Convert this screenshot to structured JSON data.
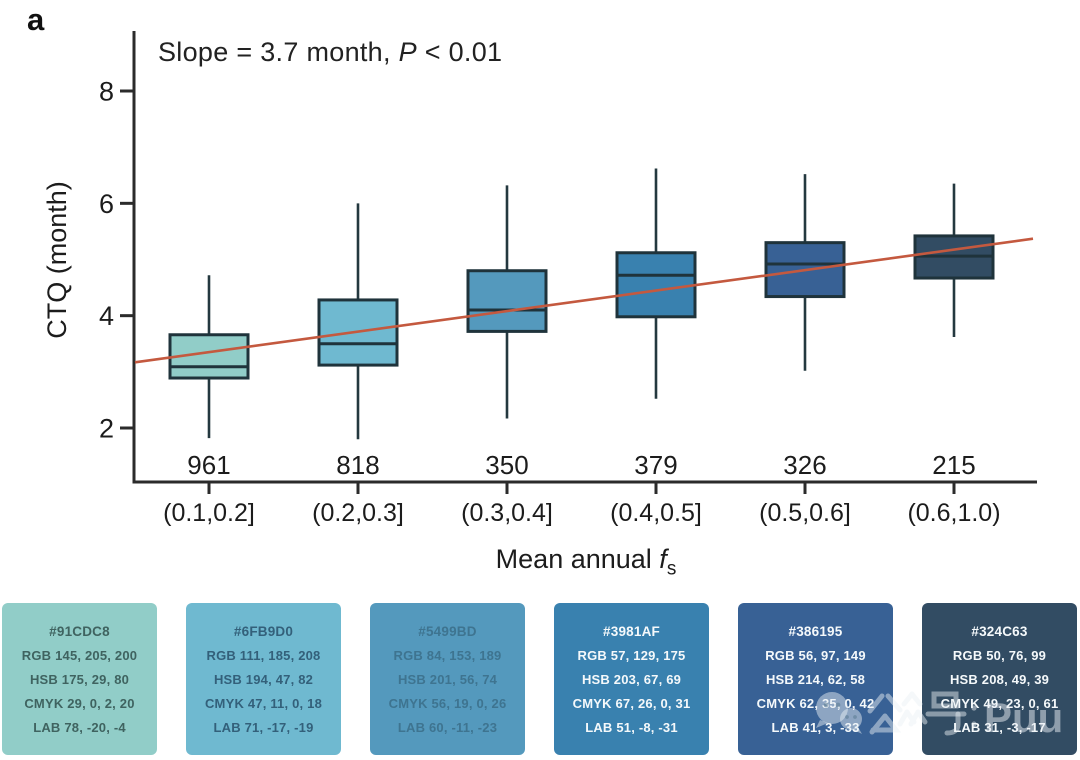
{
  "panel_label": "a",
  "annotation": {
    "prefix": "Slope = 3.7 month, ",
    "p_symbol": "P",
    "suffix": " < 0.01"
  },
  "axes": {
    "ylabel": "CTQ (month)",
    "xlabel_prefix": "Mean annual ",
    "xlabel_var": "f",
    "xlabel_sub": "s"
  },
  "watermark": {
    "text": "公众号：Puul",
    "brand": "Puul"
  },
  "chart_data": {
    "type": "box",
    "title": "Slope = 3.7 month, P < 0.01",
    "xlabel": "Mean annual f_s",
    "ylabel": "CTQ (month)",
    "ylim": [
      1.5,
      8.8
    ],
    "yticks": [
      8,
      6,
      4,
      2
    ],
    "grid": false,
    "legend": "none",
    "categories": [
      "(0.1,0.2]",
      "(0.2,0.3]",
      "(0.3,0.4]",
      "(0.4,0.5]",
      "(0.5,0.6]",
      "(0.6,1.0)"
    ],
    "counts": [
      961,
      818,
      350,
      379,
      326,
      215
    ],
    "series": [
      {
        "category": "(0.1,0.2]",
        "n": "961",
        "whisker_low": 1.82,
        "q1": 2.89,
        "median": 3.09,
        "q3": 3.66,
        "whisker_high": 4.72,
        "color": "#91CDC8"
      },
      {
        "category": "(0.2,0.3]",
        "n": "818",
        "whisker_low": 1.8,
        "q1": 3.12,
        "median": 3.5,
        "q3": 4.28,
        "whisker_high": 6.0,
        "color": "#6FB9D0"
      },
      {
        "category": "(0.3,0.4]",
        "n": "350",
        "whisker_low": 2.17,
        "q1": 3.72,
        "median": 4.1,
        "q3": 4.8,
        "whisker_high": 6.32,
        "color": "#5499BD"
      },
      {
        "category": "(0.4,0.5]",
        "n": "379",
        "whisker_low": 2.52,
        "q1": 3.98,
        "median": 4.72,
        "q3": 5.12,
        "whisker_high": 6.62,
        "color": "#3981AF"
      },
      {
        "category": "(0.5,0.6]",
        "n": "326",
        "whisker_low": 3.02,
        "q1": 4.34,
        "median": 4.92,
        "q3": 5.3,
        "whisker_high": 6.52,
        "color": "#386195"
      },
      {
        "category": "(0.6,1.0)",
        "n": "215",
        "whisker_low": 3.62,
        "q1": 4.67,
        "median": 5.06,
        "q3": 5.42,
        "whisker_high": 6.35,
        "color": "#324C63"
      }
    ],
    "trend_line": {
      "slope_label": "Slope = 3.7 month, P < 0.01",
      "color": "#C4593F",
      "value_at_left": 3.17,
      "value_at_right": 5.37
    }
  },
  "palette": [
    {
      "hex": "#91CDC8",
      "rgb": "RGB 145, 205, 200",
      "hsb": "HSB 175, 29, 80",
      "cmyk": "CMYK 29, 0, 2, 20",
      "lab": "LAB 78, -20, -4",
      "bg": "#91CDC8",
      "text_color": "#3f6360"
    },
    {
      "hex": "#6FB9D0",
      "rgb": "RGB 111, 185, 208",
      "hsb": "HSB 194, 47, 82",
      "cmyk": "CMYK 47, 11, 0, 18",
      "lab": "LAB 71, -17, -19",
      "bg": "#6FB9D0",
      "text_color": "#33607a"
    },
    {
      "hex": "#5499BD",
      "rgb": "RGB 84, 153, 189",
      "hsb": "HSB 201, 56, 74",
      "cmyk": "CMYK 56, 19, 0, 26",
      "lab": "LAB 60, -11, -23",
      "bg": "#5499BD",
      "text_color": "#3e7490"
    },
    {
      "hex": "#3981AF",
      "rgb": "RGB 57, 129, 175",
      "hsb": "HSB 203, 67, 69",
      "cmyk": "CMYK 67, 26, 0, 31",
      "lab": "LAB 51, -8, -31",
      "bg": "#3981AF",
      "text_color": "#f5f9fb"
    },
    {
      "hex": "#386195",
      "rgb": "RGB 56, 97, 149",
      "hsb": "HSB 214, 62, 58",
      "cmyk": "CMYK 62, 35, 0, 42",
      "lab": "LAB 41, 3, -33",
      "bg": "#386195",
      "text_color": "#f5f9fb"
    },
    {
      "hex": "#324C63",
      "rgb": "RGB 50, 76, 99",
      "hsb": "HSB 208, 49, 39",
      "cmyk": "CMYK 49, 23, 0, 61",
      "lab": "LAB 31, -3, -17",
      "bg": "#324C63",
      "text_color": "#f5f9fb"
    }
  ]
}
